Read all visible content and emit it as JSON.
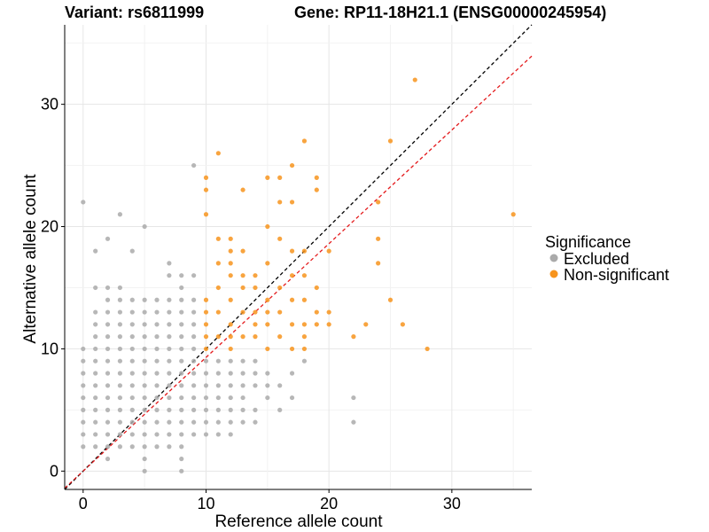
{
  "chart_data": {
    "type": "scatter",
    "title_left": "Variant: rs6811999",
    "title_right": "Gene: RP11-18H21.1 (ENSG00000245954)",
    "xlabel": "Reference allele count",
    "ylabel": "Alternative allele count",
    "xlim": [
      -1.5,
      36.5
    ],
    "ylim": [
      -1.5,
      36.5
    ],
    "xticks": [
      0,
      10,
      20,
      30
    ],
    "yticks": [
      0,
      10,
      20,
      30
    ],
    "grid": true,
    "legend": {
      "title": "Significance",
      "placement": "right",
      "entries": [
        "Excluded",
        "Non-significant"
      ]
    },
    "reference_lines": [
      {
        "type": "identity",
        "slope": 1,
        "intercept": 0,
        "color": "#000000",
        "style": "dashed"
      },
      {
        "type": "fit",
        "slope": 0.93,
        "intercept": 0,
        "color": "#e41a1c",
        "style": "dashed"
      }
    ],
    "series": [
      {
        "name": "Excluded",
        "color": "#aaaaaa",
        "points": [
          [
            0,
            22
          ],
          [
            0,
            10
          ],
          [
            0,
            9
          ],
          [
            0,
            8
          ],
          [
            0,
            7
          ],
          [
            0,
            6
          ],
          [
            0,
            5
          ],
          [
            0,
            4
          ],
          [
            0,
            3
          ],
          [
            0,
            2
          ],
          [
            1,
            18
          ],
          [
            1,
            15
          ],
          [
            1,
            13
          ],
          [
            1,
            12
          ],
          [
            1,
            11
          ],
          [
            1,
            10
          ],
          [
            1,
            9
          ],
          [
            1,
            8
          ],
          [
            1,
            7
          ],
          [
            1,
            6
          ],
          [
            1,
            5
          ],
          [
            1,
            4
          ],
          [
            1,
            3
          ],
          [
            1,
            2
          ],
          [
            2,
            19
          ],
          [
            2,
            15
          ],
          [
            2,
            14
          ],
          [
            2,
            13
          ],
          [
            2,
            12
          ],
          [
            2,
            11
          ],
          [
            2,
            10
          ],
          [
            2,
            9
          ],
          [
            2,
            8
          ],
          [
            2,
            7
          ],
          [
            2,
            6
          ],
          [
            2,
            5
          ],
          [
            2,
            4
          ],
          [
            2,
            3
          ],
          [
            2,
            2
          ],
          [
            2,
            1
          ],
          [
            3,
            21
          ],
          [
            3,
            15
          ],
          [
            3,
            14
          ],
          [
            3,
            13
          ],
          [
            3,
            12
          ],
          [
            3,
            11
          ],
          [
            3,
            10
          ],
          [
            3,
            9
          ],
          [
            3,
            8
          ],
          [
            3,
            7
          ],
          [
            3,
            6
          ],
          [
            3,
            5
          ],
          [
            3,
            4
          ],
          [
            3,
            3
          ],
          [
            3,
            2
          ],
          [
            4,
            18
          ],
          [
            4,
            14
          ],
          [
            4,
            13
          ],
          [
            4,
            12
          ],
          [
            4,
            11
          ],
          [
            4,
            10
          ],
          [
            4,
            9
          ],
          [
            4,
            8
          ],
          [
            4,
            7
          ],
          [
            4,
            6
          ],
          [
            4,
            5
          ],
          [
            4,
            4
          ],
          [
            4,
            3
          ],
          [
            4,
            2
          ],
          [
            5,
            20
          ],
          [
            5,
            14
          ],
          [
            5,
            13
          ],
          [
            5,
            12
          ],
          [
            5,
            11
          ],
          [
            5,
            10
          ],
          [
            5,
            9
          ],
          [
            5,
            8
          ],
          [
            5,
            7
          ],
          [
            5,
            6
          ],
          [
            5,
            5
          ],
          [
            5,
            4
          ],
          [
            5,
            3
          ],
          [
            5,
            2
          ],
          [
            5,
            1
          ],
          [
            5,
            0
          ],
          [
            6,
            14
          ],
          [
            6,
            13
          ],
          [
            6,
            12
          ],
          [
            6,
            11
          ],
          [
            6,
            10
          ],
          [
            6,
            9
          ],
          [
            6,
            8
          ],
          [
            6,
            7
          ],
          [
            6,
            6
          ],
          [
            6,
            5
          ],
          [
            6,
            4
          ],
          [
            6,
            3
          ],
          [
            6,
            2
          ],
          [
            7,
            17
          ],
          [
            7,
            16
          ],
          [
            7,
            14
          ],
          [
            7,
            13
          ],
          [
            7,
            12
          ],
          [
            7,
            11
          ],
          [
            7,
            10
          ],
          [
            7,
            9
          ],
          [
            7,
            8
          ],
          [
            7,
            7
          ],
          [
            7,
            6
          ],
          [
            7,
            5
          ],
          [
            7,
            4
          ],
          [
            7,
            3
          ],
          [
            7,
            2
          ],
          [
            8,
            16
          ],
          [
            8,
            15
          ],
          [
            8,
            14
          ],
          [
            8,
            13
          ],
          [
            8,
            12
          ],
          [
            8,
            11
          ],
          [
            8,
            10
          ],
          [
            8,
            9
          ],
          [
            8,
            8
          ],
          [
            8,
            7
          ],
          [
            8,
            6
          ],
          [
            8,
            5
          ],
          [
            8,
            4
          ],
          [
            8,
            3
          ],
          [
            8,
            2
          ],
          [
            8,
            1
          ],
          [
            8,
            0
          ],
          [
            9,
            25
          ],
          [
            9,
            16
          ],
          [
            9,
            14
          ],
          [
            9,
            13
          ],
          [
            9,
            12
          ],
          [
            9,
            11
          ],
          [
            9,
            10
          ],
          [
            9,
            9
          ],
          [
            9,
            8
          ],
          [
            9,
            7
          ],
          [
            9,
            6
          ],
          [
            9,
            5
          ],
          [
            9,
            4
          ],
          [
            9,
            3
          ],
          [
            10,
            9
          ],
          [
            10,
            8
          ],
          [
            10,
            7
          ],
          [
            10,
            6
          ],
          [
            10,
            5
          ],
          [
            10,
            4
          ],
          [
            10,
            3
          ],
          [
            11,
            9
          ],
          [
            11,
            8
          ],
          [
            11,
            7
          ],
          [
            11,
            6
          ],
          [
            11,
            5
          ],
          [
            11,
            4
          ],
          [
            11,
            3
          ],
          [
            12,
            9
          ],
          [
            12,
            8
          ],
          [
            12,
            7
          ],
          [
            12,
            6
          ],
          [
            12,
            5
          ],
          [
            12,
            4
          ],
          [
            12,
            3
          ],
          [
            13,
            9
          ],
          [
            13,
            8
          ],
          [
            13,
            7
          ],
          [
            13,
            6
          ],
          [
            13,
            5
          ],
          [
            13,
            4
          ],
          [
            14,
            9
          ],
          [
            14,
            8
          ],
          [
            14,
            7
          ],
          [
            14,
            5
          ],
          [
            14,
            4
          ],
          [
            15,
            8
          ],
          [
            15,
            7
          ],
          [
            15,
            6
          ],
          [
            16,
            7
          ],
          [
            16,
            5
          ],
          [
            17,
            6
          ],
          [
            17,
            8
          ],
          [
            18,
            9
          ],
          [
            22,
            6
          ],
          [
            22,
            4
          ]
        ]
      },
      {
        "name": "Non-significant",
        "color": "#f7941d",
        "points": [
          [
            10,
            24
          ],
          [
            10,
            23
          ],
          [
            10,
            21
          ],
          [
            10,
            14
          ],
          [
            10,
            13
          ],
          [
            10,
            12
          ],
          [
            10,
            11
          ],
          [
            10,
            10
          ],
          [
            11,
            26
          ],
          [
            11,
            19
          ],
          [
            11,
            17
          ],
          [
            11,
            15
          ],
          [
            11,
            13
          ],
          [
            11,
            11
          ],
          [
            12,
            19
          ],
          [
            12,
            18
          ],
          [
            12,
            17
          ],
          [
            12,
            16
          ],
          [
            12,
            14
          ],
          [
            12,
            12
          ],
          [
            12,
            11
          ],
          [
            12,
            10
          ],
          [
            13,
            23
          ],
          [
            13,
            18
          ],
          [
            13,
            16
          ],
          [
            13,
            15
          ],
          [
            13,
            13
          ],
          [
            13,
            11
          ],
          [
            14,
            16
          ],
          [
            14,
            15
          ],
          [
            14,
            13
          ],
          [
            14,
            12
          ],
          [
            14,
            11
          ],
          [
            15,
            24
          ],
          [
            15,
            20
          ],
          [
            15,
            17
          ],
          [
            15,
            14
          ],
          [
            15,
            13
          ],
          [
            15,
            12
          ],
          [
            15,
            10
          ],
          [
            16,
            24
          ],
          [
            16,
            22
          ],
          [
            16,
            19
          ],
          [
            16,
            15
          ],
          [
            16,
            13
          ],
          [
            16,
            11
          ],
          [
            17,
            25
          ],
          [
            17,
            22
          ],
          [
            17,
            18
          ],
          [
            17,
            16
          ],
          [
            17,
            14
          ],
          [
            17,
            12
          ],
          [
            17,
            10
          ],
          [
            18,
            27
          ],
          [
            18,
            18
          ],
          [
            18,
            16
          ],
          [
            18,
            14
          ],
          [
            18,
            12
          ],
          [
            18,
            11
          ],
          [
            18,
            10
          ],
          [
            19,
            24
          ],
          [
            19,
            23
          ],
          [
            19,
            15
          ],
          [
            19,
            13
          ],
          [
            19,
            12
          ],
          [
            20,
            18
          ],
          [
            20,
            13
          ],
          [
            20,
            12
          ],
          [
            22,
            11
          ],
          [
            23,
            12
          ],
          [
            24,
            22
          ],
          [
            24,
            19
          ],
          [
            24,
            17
          ],
          [
            25,
            27
          ],
          [
            25,
            14
          ],
          [
            26,
            12
          ],
          [
            27,
            32
          ],
          [
            28,
            10
          ],
          [
            35,
            21
          ]
        ]
      }
    ]
  }
}
